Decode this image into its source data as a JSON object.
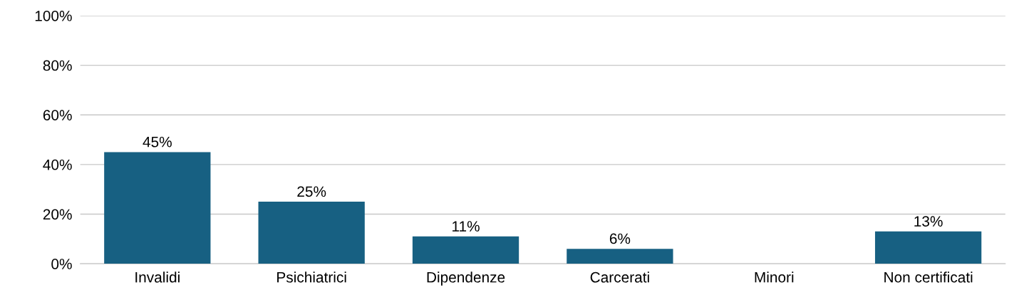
{
  "chart_data": {
    "type": "bar",
    "categories": [
      "Invalidi",
      "Psichiatrici",
      "Dipendenze",
      "Carcerati",
      "Minori",
      "Non certificati"
    ],
    "values": [
      45,
      25,
      11,
      6,
      null,
      13
    ],
    "value_labels": [
      "45%",
      "25%",
      "11%",
      "6%",
      null,
      "13%"
    ],
    "color": "#176082",
    "ylim": [
      0,
      100
    ],
    "yticks": [
      {
        "value": 0,
        "label": "0%"
      },
      {
        "value": 20,
        "label": "20%"
      },
      {
        "value": 40,
        "label": "40%"
      },
      {
        "value": 60,
        "label": "60%"
      },
      {
        "value": 80,
        "label": "80%"
      },
      {
        "value": 100,
        "label": "100%"
      }
    ],
    "grid": "y",
    "legend": false
  }
}
